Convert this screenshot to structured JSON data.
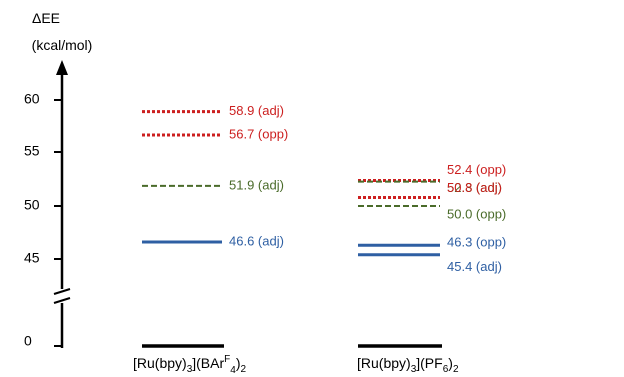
{
  "chart_data": {
    "type": "energy_level_diagram",
    "ylabel_line1": "ΔEE",
    "ylabel_line2": "(kcal/mol)",
    "y_ticks": [
      "60",
      "55",
      "50",
      "45",
      "0"
    ],
    "axis_break": true,
    "colors": {
      "adj_red": "#cc1f1f",
      "green": "#4a6b2a",
      "blue": "#2e5fa3",
      "axis": "#000000"
    },
    "columns": [
      {
        "label_main": "[Ru(bpy)",
        "label_sub1": "3",
        "label_mid": "](BAr",
        "label_sup": "F",
        "label_sub2": "4",
        "label_end": ")",
        "label_sub3": "2",
        "baseline": 0,
        "levels": [
          {
            "value": 58.9,
            "label": "58.9 (adj)",
            "style": "dotted",
            "color": "#cc1f1f"
          },
          {
            "value": 56.7,
            "label": "56.7 (opp)",
            "style": "dotted",
            "color": "#cc1f1f"
          },
          {
            "value": 51.9,
            "label": "51.9 (adj)",
            "style": "dashed",
            "color": "#4a6b2a"
          },
          {
            "value": 46.6,
            "label": "46.6 (adj)",
            "style": "solid",
            "color": "#2e5fa3"
          }
        ]
      },
      {
        "label_main": "[Ru(bpy)",
        "label_sub1": "3",
        "label_mid": "](PF",
        "label_sup": "",
        "label_sub2": "6",
        "label_end": ")",
        "label_sub3": "2",
        "baseline": 0,
        "levels": [
          {
            "value": 52.4,
            "label": "52.4 (opp)",
            "style": "dotted",
            "color": "#cc1f1f"
          },
          {
            "value": 52.3,
            "label": "52.3 (adj)",
            "style": "dashed",
            "color": "#4a6b2a"
          },
          {
            "value": 50.8,
            "label": "50.8 (adj)",
            "style": "dotted",
            "color": "#cc1f1f"
          },
          {
            "value": 50.0,
            "label": "50.0 (opp)",
            "style": "dashed",
            "color": "#4a6b2a"
          },
          {
            "value": 46.3,
            "label": "46.3 (opp)",
            "style": "solid",
            "color": "#2e5fa3"
          },
          {
            "value": 45.4,
            "label": "45.4 (adj)",
            "style": "solid",
            "color": "#2e5fa3"
          }
        ]
      }
    ]
  }
}
